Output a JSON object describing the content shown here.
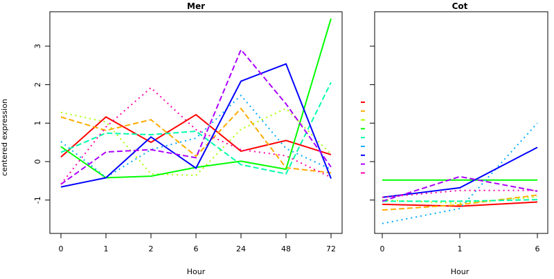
{
  "chart_data": [
    {
      "type": "line",
      "title": "Mer",
      "xlabel": "Hour",
      "ylabel": "centered expression",
      "categories": [
        "0",
        "1",
        "2",
        "6",
        "24",
        "48",
        "72"
      ],
      "yticks": [
        "-1",
        "0",
        "1",
        "2",
        "3"
      ],
      "ylim": [
        -1.85,
        3.85
      ],
      "series": [
        {
          "color": "#FF0000",
          "dash": "solid",
          "values": [
            0.12,
            1.16,
            0.5,
            1.22,
            0.27,
            0.55,
            0.18
          ]
        },
        {
          "color": "#FFAA00",
          "dash": "dashed",
          "values": [
            1.16,
            0.81,
            1.09,
            0.14,
            1.38,
            -0.16,
            -0.29
          ]
        },
        {
          "color": "#AAFF00",
          "dash": "dotted",
          "values": [
            1.28,
            1.03,
            -0.32,
            -0.36,
            0.84,
            1.38,
            0.19
          ]
        },
        {
          "color": "#00FF00",
          "dash": "solid",
          "values": [
            0.39,
            -0.42,
            -0.38,
            -0.15,
            0.01,
            -0.2,
            3.72
          ]
        },
        {
          "color": "#00FFAA",
          "dash": "dashed",
          "values": [
            0.24,
            0.74,
            0.7,
            0.79,
            -0.08,
            -0.32,
            2.06
          ]
        },
        {
          "color": "#00AAFF",
          "dash": "dotted",
          "values": [
            0.52,
            -0.41,
            0.31,
            0.61,
            1.72,
            0.34,
            -0.2
          ]
        },
        {
          "color": "#0000FF",
          "dash": "solid",
          "values": [
            -0.66,
            -0.42,
            0.64,
            -0.17,
            2.09,
            2.54,
            -0.44
          ]
        },
        {
          "color": "#AA00FF",
          "dash": "dashed",
          "values": [
            -0.59,
            0.25,
            0.31,
            0.1,
            2.91,
            1.5,
            -0.14
          ]
        },
        {
          "color": "#FF00AA",
          "dash": "dotted",
          "values": [
            -0.59,
            0.9,
            1.92,
            0.83,
            0.31,
            0.15,
            -0.41
          ]
        }
      ]
    },
    {
      "type": "line",
      "title": "Cot",
      "xlabel": "Hour",
      "categories": [
        "0",
        "1",
        "6"
      ],
      "ylim": [
        -1.85,
        3.85
      ],
      "series": [
        {
          "color": "#FF0000",
          "dash": "solid",
          "values": [
            -1.11,
            -1.16,
            -1.05
          ]
        },
        {
          "color": "#FFAA00",
          "dash": "dashed",
          "values": [
            -1.26,
            -1.12,
            -0.87
          ]
        },
        {
          "color": "#AAFF00",
          "dash": "dotted",
          "values": [
            -1.0,
            -1.08,
            -0.92
          ]
        },
        {
          "color": "#00FF00",
          "dash": "solid",
          "values": [
            -0.48,
            -0.48,
            -0.48
          ]
        },
        {
          "color": "#00FFAA",
          "dash": "dashed",
          "values": [
            -1.03,
            -1.03,
            -0.99
          ]
        },
        {
          "color": "#00AAFF",
          "dash": "dotted",
          "values": [
            -1.61,
            -1.22,
            1.0
          ]
        },
        {
          "color": "#0000FF",
          "dash": "solid",
          "values": [
            -0.93,
            -0.68,
            0.37
          ]
        },
        {
          "color": "#AA00FF",
          "dash": "dashed",
          "values": [
            -1.03,
            -0.39,
            -0.77
          ]
        },
        {
          "color": "#FF00AA",
          "dash": "dotted",
          "values": [
            -0.93,
            -0.75,
            -0.75
          ]
        }
      ]
    }
  ]
}
